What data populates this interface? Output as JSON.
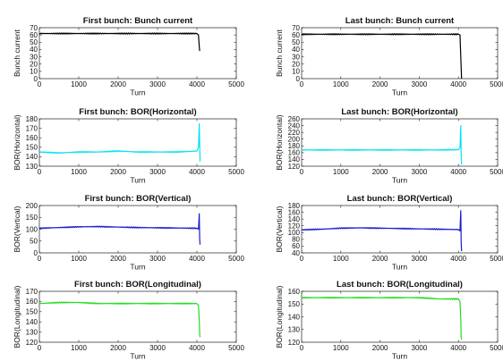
{
  "chart_data": [
    {
      "type": "line",
      "title": "First bunch: Bunch current",
      "xlabel": "Turn",
      "ylabel": "Bunch current",
      "xlim": [
        0,
        5000
      ],
      "ylim": [
        0,
        70
      ],
      "xticks": [
        0,
        1000,
        2000,
        3000,
        4000,
        5000
      ],
      "yticks": [
        0,
        10,
        20,
        30,
        40,
        50,
        60,
        70
      ],
      "color": "#000000",
      "series": [
        {
          "x": [
            0,
            500,
            1000,
            1500,
            2000,
            2500,
            3000,
            3500,
            4000,
            4040,
            4060,
            4070
          ],
          "y": [
            62,
            62,
            62,
            62,
            62,
            62,
            62,
            62,
            62,
            60,
            44,
            38
          ]
        }
      ]
    },
    {
      "type": "line",
      "title": "Last bunch: Bunch current",
      "xlabel": "Turn",
      "ylabel": "Bunch current",
      "xlim": [
        0,
        5000
      ],
      "ylim": [
        0,
        70
      ],
      "xticks": [
        0,
        1000,
        2000,
        3000,
        4000,
        5000
      ],
      "yticks": [
        0,
        10,
        20,
        30,
        40,
        50,
        60,
        70
      ],
      "color": "#000000",
      "series": [
        {
          "x": [
            0,
            500,
            1000,
            1500,
            2000,
            2500,
            3000,
            3500,
            4000,
            4040,
            4060,
            4080
          ],
          "y": [
            61,
            61,
            61,
            61,
            61,
            61,
            61,
            61,
            61,
            60,
            30,
            0
          ]
        }
      ]
    },
    {
      "type": "line",
      "title": "First bunch: BOR(Horizontal)",
      "xlabel": "Turn",
      "ylabel": "BOR(Horizontal)",
      "xlim": [
        0,
        5000
      ],
      "ylim": [
        130,
        180
      ],
      "xticks": [
        0,
        1000,
        2000,
        3000,
        4000,
        5000
      ],
      "yticks": [
        130,
        140,
        150,
        160,
        170,
        180
      ],
      "color": "#00e5ee",
      "series": [
        {
          "x": [
            0,
            500,
            1000,
            1500,
            2000,
            2500,
            3000,
            3500,
            4000,
            4040,
            4060,
            4070,
            4080
          ],
          "y": [
            145,
            144,
            145,
            145,
            146,
            145,
            145,
            145,
            146,
            150,
            175,
            155,
            135
          ]
        }
      ]
    },
    {
      "type": "line",
      "title": "Last bunch: BOR(Horizontal)",
      "xlabel": "Turn",
      "ylabel": "BOR(Horizontal)",
      "xlim": [
        0,
        5000
      ],
      "ylim": [
        120,
        260
      ],
      "xticks": [
        0,
        1000,
        2000,
        3000,
        4000,
        5000
      ],
      "yticks": [
        120,
        140,
        160,
        180,
        200,
        220,
        240,
        260
      ],
      "color": "#00e5ee",
      "series": [
        {
          "x": [
            0,
            500,
            1000,
            1500,
            2000,
            2500,
            3000,
            3500,
            4000,
            4040,
            4060,
            4070,
            4080
          ],
          "y": [
            168,
            168,
            168,
            168,
            168,
            168,
            168,
            168,
            169,
            175,
            240,
            150,
            125
          ]
        }
      ]
    },
    {
      "type": "line",
      "title": "First bunch: BOR(Vertical)",
      "xlabel": "Turn",
      "ylabel": "BOR(Vertical)",
      "xlim": [
        0,
        5000
      ],
      "ylim": [
        0,
        200
      ],
      "xticks": [
        0,
        1000,
        2000,
        3000,
        4000,
        5000
      ],
      "yticks": [
        0,
        50,
        100,
        150,
        200
      ],
      "color": "#1a1acd",
      "series": [
        {
          "x": [
            0,
            500,
            1000,
            1500,
            2000,
            2500,
            3000,
            3500,
            4000,
            4040,
            4060,
            4070,
            4080
          ],
          "y": [
            104,
            107,
            110,
            111,
            109,
            107,
            106,
            105,
            104,
            100,
            165,
            60,
            35
          ]
        }
      ]
    },
    {
      "type": "line",
      "title": "Last bunch: BOR(Vertical)",
      "xlabel": "Turn",
      "ylabel": "BOR(Vertical)",
      "xlim": [
        0,
        5000
      ],
      "ylim": [
        40,
        180
      ],
      "xticks": [
        0,
        1000,
        2000,
        3000,
        4000,
        5000
      ],
      "yticks": [
        40,
        60,
        80,
        100,
        120,
        140,
        160,
        180
      ],
      "color": "#1a1acd",
      "series": [
        {
          "x": [
            0,
            500,
            1000,
            1500,
            2000,
            2500,
            3000,
            3500,
            4000,
            4040,
            4060,
            4070,
            4080
          ],
          "y": [
            108,
            110,
            113,
            114,
            113,
            112,
            111,
            110,
            109,
            105,
            165,
            70,
            45
          ]
        }
      ]
    },
    {
      "type": "line",
      "title": "First bunch: BOR(Longitudinal)",
      "xlabel": "Turn",
      "ylabel": "BOR(Longitudinal)",
      "xlim": [
        0,
        5000
      ],
      "ylim": [
        120,
        170
      ],
      "xticks": [
        0,
        1000,
        2000,
        3000,
        4000,
        5000
      ],
      "yticks": [
        120,
        130,
        140,
        150,
        160,
        170
      ],
      "color": "#22dd22",
      "series": [
        {
          "x": [
            0,
            500,
            1000,
            1500,
            2000,
            2500,
            3000,
            3500,
            4000,
            4040,
            4060,
            4070,
            4080
          ],
          "y": [
            158,
            159,
            159,
            158,
            158,
            158,
            158,
            158,
            158,
            156,
            142,
            128,
            125
          ]
        }
      ]
    },
    {
      "type": "line",
      "title": "Last bunch: BOR(Longitudinal)",
      "xlabel": "Turn",
      "ylabel": "BOR(Longitudinal)",
      "xlim": [
        0,
        5000
      ],
      "ylim": [
        120,
        160
      ],
      "xticks": [
        0,
        1000,
        2000,
        3000,
        4000,
        5000
      ],
      "yticks": [
        120,
        130,
        140,
        150,
        160
      ],
      "color": "#22dd22",
      "series": [
        {
          "x": [
            0,
            500,
            1000,
            1500,
            2000,
            2500,
            3000,
            3500,
            4000,
            4040,
            4060,
            4070,
            4080
          ],
          "y": [
            155,
            155,
            155,
            155,
            155,
            155,
            155,
            154,
            154,
            152,
            138,
            124,
            122
          ]
        }
      ]
    }
  ]
}
